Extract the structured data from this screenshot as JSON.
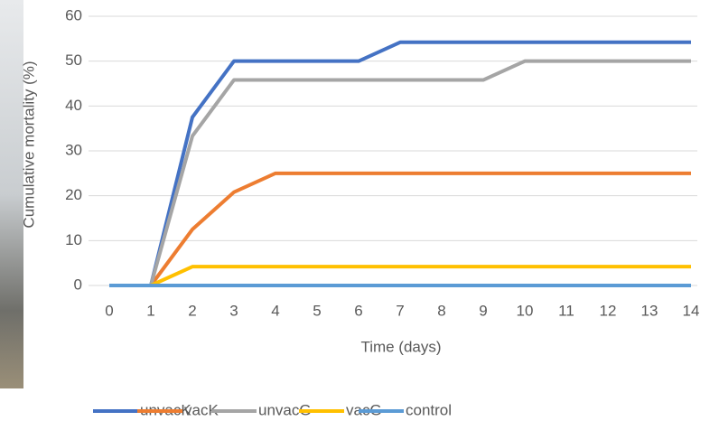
{
  "chart_data": {
    "type": "line",
    "y_label": "Cumulative mortality (%)",
    "x_label": "Time (days)",
    "x": [
      0,
      1,
      2,
      3,
      4,
      5,
      6,
      7,
      8,
      9,
      10,
      11,
      12,
      13,
      14
    ],
    "xlim": [
      0,
      14
    ],
    "xticks": [
      0,
      1,
      2,
      3,
      4,
      5,
      6,
      7,
      8,
      9,
      10,
      11,
      12,
      13,
      14
    ],
    "ylim": [
      0,
      60
    ],
    "yticks": [
      0,
      10,
      20,
      30,
      40,
      50,
      60
    ],
    "grid": true,
    "legend": "bottom",
    "series": [
      {
        "name": "unvacK",
        "color": "#4472c4",
        "values": [
          0,
          0,
          37.5,
          50,
          50,
          50,
          50,
          54.2,
          54.2,
          54.2,
          54.2,
          54.2,
          54.2,
          54.2,
          54.2
        ]
      },
      {
        "name": "vacK",
        "color": "#ed7d31",
        "values": [
          0,
          0,
          12.5,
          20.8,
          25,
          25,
          25,
          25,
          25,
          25,
          25,
          25,
          25,
          25,
          25
        ]
      },
      {
        "name": "unvacG",
        "color": "#a5a5a5",
        "values": [
          0,
          0,
          33.3,
          45.8,
          45.8,
          45.8,
          45.8,
          45.8,
          45.8,
          45.8,
          50,
          50,
          50,
          50,
          50
        ]
      },
      {
        "name": "vacG",
        "color": "#ffc000",
        "values": [
          0,
          0,
          4.2,
          4.2,
          4.2,
          4.2,
          4.2,
          4.2,
          4.2,
          4.2,
          4.2,
          4.2,
          4.2,
          4.2,
          4.2
        ]
      },
      {
        "name": "control",
        "color": "#5b9bd5",
        "values": [
          0,
          0,
          0,
          0,
          0,
          0,
          0,
          0,
          0,
          0,
          0,
          0,
          0,
          0,
          0
        ]
      }
    ]
  }
}
